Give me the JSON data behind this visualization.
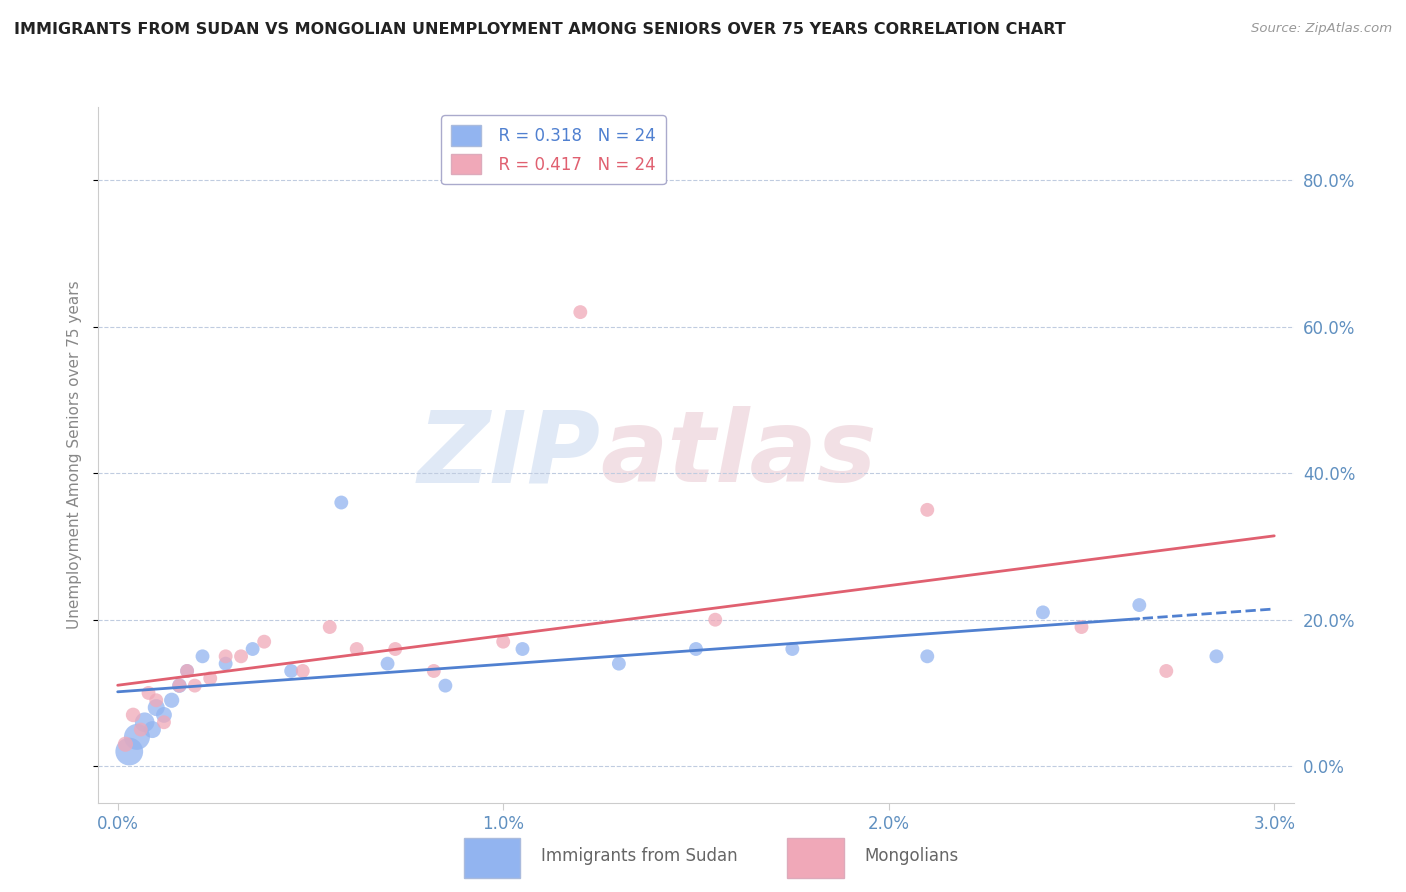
{
  "title": "IMMIGRANTS FROM SUDAN VS MONGOLIAN UNEMPLOYMENT AMONG SENIORS OVER 75 YEARS CORRELATION CHART",
  "source": "Source: ZipAtlas.com",
  "ylabel": "Unemployment Among Seniors over 75 years",
  "xlabel_ticks": [
    "0.0%",
    "1.0%",
    "2.0%",
    "3.0%"
  ],
  "xlabel_vals": [
    0.0,
    1.0,
    2.0,
    3.0
  ],
  "ytick_vals": [
    0.0,
    20.0,
    40.0,
    60.0,
    80.0
  ],
  "ytick_labels": [
    "0.0%",
    "20.0%",
    "40.0%",
    "60.0%",
    "80.0%"
  ],
  "xlim": [
    0.0,
    3.0
  ],
  "ylim": [
    -5.0,
    90.0
  ],
  "legend_r1": "R = 0.318",
  "legend_n1": "N = 24",
  "legend_r2": "R = 0.417",
  "legend_n2": "N = 24",
  "blue_color": "#92b4f0",
  "pink_color": "#f0a8b8",
  "trend_blue": "#5080d0",
  "trend_pink": "#e06070",
  "watermark_zip": "ZIP",
  "watermark_atlas": "atlas",
  "sudan_x": [
    0.03,
    0.05,
    0.07,
    0.09,
    0.1,
    0.12,
    0.14,
    0.16,
    0.18,
    0.22,
    0.28,
    0.35,
    0.45,
    0.58,
    0.7,
    0.85,
    1.05,
    1.3,
    1.5,
    1.75,
    2.1,
    2.4,
    2.65,
    2.85
  ],
  "sudan_y": [
    2.0,
    4.0,
    6.0,
    5.0,
    8.0,
    7.0,
    9.0,
    11.0,
    13.0,
    15.0,
    14.0,
    16.0,
    13.0,
    36.0,
    14.0,
    11.0,
    16.0,
    14.0,
    16.0,
    16.0,
    15.0,
    21.0,
    22.0,
    15.0
  ],
  "sudan_size": [
    400,
    350,
    200,
    150,
    150,
    130,
    120,
    110,
    100,
    100,
    100,
    100,
    100,
    100,
    100,
    100,
    100,
    100,
    100,
    100,
    100,
    100,
    100,
    100
  ],
  "mongol_x": [
    0.02,
    0.04,
    0.06,
    0.08,
    0.1,
    0.12,
    0.16,
    0.18,
    0.2,
    0.24,
    0.28,
    0.32,
    0.38,
    0.48,
    0.55,
    0.62,
    0.72,
    0.82,
    1.0,
    1.2,
    1.55,
    2.1,
    2.5,
    2.72
  ],
  "mongol_y": [
    3.0,
    7.0,
    5.0,
    10.0,
    9.0,
    6.0,
    11.0,
    13.0,
    11.0,
    12.0,
    15.0,
    15.0,
    17.0,
    13.0,
    19.0,
    16.0,
    16.0,
    13.0,
    17.0,
    62.0,
    20.0,
    35.0,
    19.0,
    13.0
  ],
  "mongol_size": [
    120,
    110,
    100,
    100,
    100,
    100,
    100,
    100,
    100,
    100,
    100,
    100,
    100,
    100,
    100,
    100,
    100,
    100,
    100,
    100,
    100,
    100,
    100,
    100
  ]
}
